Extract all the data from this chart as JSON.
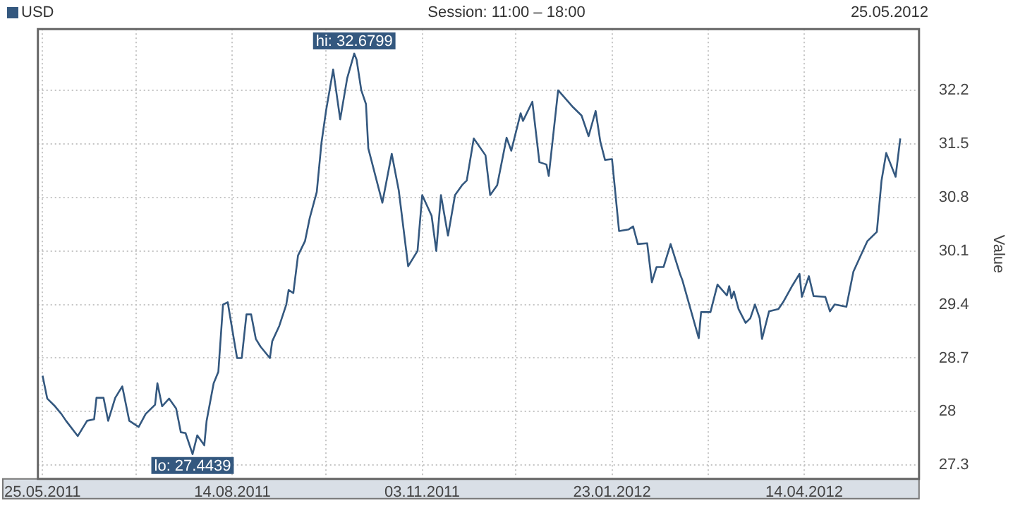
{
  "chart_data": {
    "type": "line",
    "subtitle": "Session: 11:00 – 18:00",
    "ylabel": "Value",
    "xlim": [
      "2011-05-23",
      "2012-06-02"
    ],
    "xticks": [
      {
        "value": "2011-05-25",
        "label": "25.05.2011"
      },
      {
        "value": "2011-07-04",
        "label": null
      },
      {
        "value": "2011-08-14",
        "label": "14.08.2011"
      },
      {
        "value": "2011-09-23",
        "label": null
      },
      {
        "value": "2011-11-03",
        "label": "03.11.2011"
      },
      {
        "value": "2011-12-13",
        "label": null
      },
      {
        "value": "2012-01-23",
        "label": "23.01.2012"
      },
      {
        "value": "2012-03-04",
        "label": null
      },
      {
        "value": "2012-04-14",
        "label": "14.04.2012"
      }
    ],
    "ylim": [
      27.12,
      33.0
    ],
    "yticks": [
      27.3,
      28,
      28.7,
      29.4,
      30.1,
      30.8,
      31.5,
      32.2
    ],
    "grid": true,
    "legend": "top left",
    "marker": "none",
    "line_style": "solid",
    "annotations": [
      "25.05.2012",
      {
        "text": "hi: 32.6799",
        "x": "2011-10-05",
        "y": 32.6799
      },
      {
        "text": "lo: 27.4439",
        "x": "2011-07-28",
        "y": 27.4439
      }
    ],
    "series": [
      {
        "name": "USD",
        "color": "#34587f",
        "x": [
          "2011-05-25",
          "2011-05-27",
          "2011-05-30",
          "2011-06-02",
          "2011-06-04",
          "2011-06-09",
          "2011-06-13",
          "2011-06-16",
          "2011-06-17",
          "2011-06-20",
          "2011-06-22",
          "2011-06-25",
          "2011-06-28",
          "2011-07-01",
          "2011-07-05",
          "2011-07-08",
          "2011-07-12",
          "2011-07-13",
          "2011-07-15",
          "2011-07-18",
          "2011-07-21",
          "2011-07-23",
          "2011-07-25",
          "2011-07-28",
          "2011-07-30",
          "2011-08-02",
          "2011-08-03",
          "2011-08-06",
          "2011-08-08",
          "2011-08-10",
          "2011-08-12",
          "2011-08-15",
          "2011-08-16",
          "2011-08-18",
          "2011-08-20",
          "2011-08-22",
          "2011-08-24",
          "2011-08-26",
          "2011-08-30",
          "2011-08-31",
          "2011-09-03",
          "2011-09-06",
          "2011-09-07",
          "2011-09-09",
          "2011-09-11",
          "2011-09-14",
          "2011-09-16",
          "2011-09-19",
          "2011-09-21",
          "2011-09-23",
          "2011-09-26",
          "2011-09-29",
          "2011-10-02",
          "2011-10-05",
          "2011-10-06",
          "2011-10-08",
          "2011-10-10",
          "2011-10-11",
          "2011-10-17",
          "2011-10-21",
          "2011-10-24",
          "2011-10-28",
          "2011-11-01",
          "2011-11-03",
          "2011-11-07",
          "2011-11-09",
          "2011-11-11",
          "2011-11-14",
          "2011-11-17",
          "2011-11-20",
          "2011-11-22",
          "2011-11-25",
          "2011-11-30",
          "2011-12-02",
          "2011-12-05",
          "2011-12-09",
          "2011-12-11",
          "2011-12-15",
          "2011-12-16",
          "2011-12-20",
          "2011-12-23",
          "2011-12-26",
          "2011-12-27",
          "2011-12-31",
          "2012-01-06",
          "2012-01-10",
          "2012-01-13",
          "2012-01-16",
          "2012-01-18",
          "2012-01-20",
          "2012-01-23",
          "2012-01-26",
          "2012-01-30",
          "2012-02-01",
          "2012-02-03",
          "2012-02-07",
          "2012-02-09",
          "2012-02-11",
          "2012-02-14",
          "2012-02-17",
          "2012-02-21",
          "2012-02-22",
          "2012-02-29",
          "2012-03-01",
          "2012-03-05",
          "2012-03-08",
          "2012-03-12",
          "2012-03-13",
          "2012-03-14",
          "2012-03-15",
          "2012-03-17",
          "2012-03-20",
          "2012-03-22",
          "2012-03-24",
          "2012-03-26",
          "2012-03-27",
          "2012-03-30",
          "2012-04-03",
          "2012-04-05",
          "2012-04-09",
          "2012-04-12",
          "2012-04-13",
          "2012-04-16",
          "2012-04-18",
          "2012-04-23",
          "2012-04-25",
          "2012-04-27",
          "2012-05-02",
          "2012-05-05",
          "2012-05-09",
          "2012-05-11",
          "2012-05-15",
          "2012-05-17",
          "2012-05-19",
          "2012-05-23",
          "2012-05-25"
        ],
        "values": [
          28.47,
          28.17,
          28.08,
          27.97,
          27.88,
          27.68,
          27.88,
          27.9,
          28.18,
          28.18,
          27.88,
          28.18,
          28.33,
          27.88,
          27.8,
          27.97,
          28.09,
          28.37,
          28.07,
          28.17,
          28.04,
          27.73,
          27.72,
          27.4439,
          27.69,
          27.56,
          27.88,
          28.37,
          28.52,
          29.4,
          29.43,
          28.88,
          28.7,
          28.7,
          29.27,
          29.27,
          28.95,
          28.85,
          28.7,
          28.92,
          29.12,
          29.4,
          29.59,
          29.55,
          30.04,
          30.23,
          30.53,
          30.87,
          31.51,
          31.94,
          32.47,
          31.82,
          32.36,
          32.6799,
          32.6,
          32.2,
          32.02,
          31.44,
          30.73,
          31.37,
          30.89,
          29.9,
          30.1,
          30.83,
          30.56,
          30.1,
          30.83,
          30.3,
          30.83,
          30.96,
          31.02,
          31.57,
          31.35,
          30.83,
          30.96,
          31.58,
          31.41,
          31.9,
          31.8,
          32.05,
          31.26,
          31.23,
          31.08,
          32.2,
          31.99,
          31.87,
          31.6,
          31.93,
          31.53,
          31.29,
          31.3,
          30.36,
          30.38,
          30.42,
          30.19,
          30.2,
          29.69,
          29.89,
          29.89,
          30.19,
          29.8,
          29.72,
          28.96,
          29.3,
          29.3,
          29.66,
          29.52,
          29.64,
          29.48,
          29.57,
          29.34,
          29.16,
          29.22,
          29.4,
          29.22,
          28.95,
          29.31,
          29.34,
          29.43,
          29.65,
          29.8,
          29.5,
          29.77,
          29.51,
          29.5,
          29.31,
          29.4,
          29.37,
          29.83,
          30.1,
          30.23,
          30.35,
          31.02,
          31.38,
          31.07,
          31.57
        ]
      }
    ]
  }
}
